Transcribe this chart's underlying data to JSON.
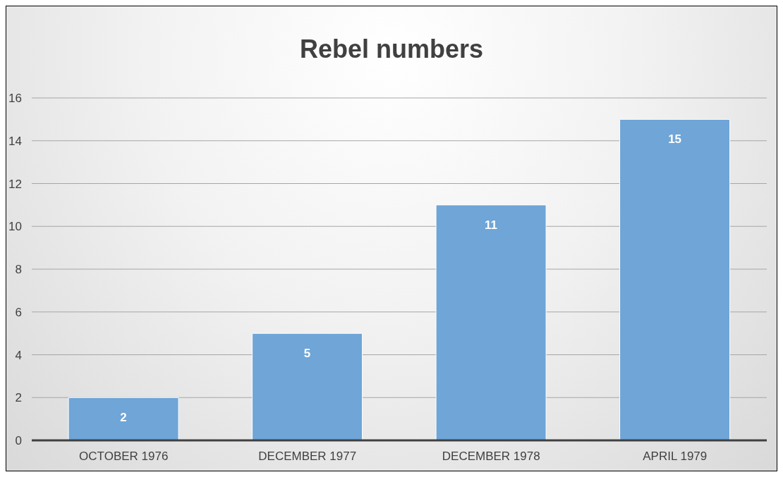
{
  "chart_data": {
    "type": "bar",
    "title": "Rebel numbers",
    "categories": [
      "OCTOBER 1976",
      "DECEMBER 1977",
      "DECEMBER 1978",
      "APRIL 1979"
    ],
    "values": [
      2,
      5,
      11,
      15
    ],
    "color": "#6fa5d7",
    "ylim": [
      0,
      16
    ],
    "yticks": [
      0,
      2,
      4,
      6,
      8,
      10,
      12,
      14,
      16
    ],
    "grid": "y",
    "data_labels": true,
    "legend": false
  }
}
